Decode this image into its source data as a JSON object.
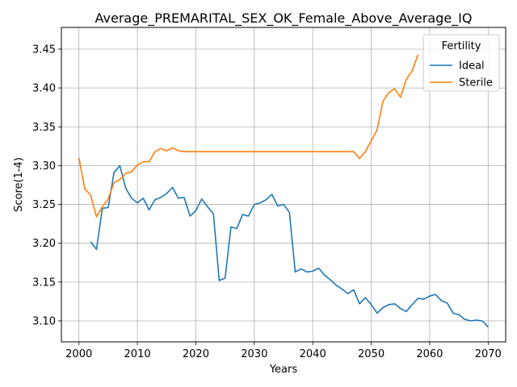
{
  "chart_data": {
    "type": "line",
    "title": "Average_PREMARITAL_SEX_OK_Female_Above_Average_IQ",
    "xlabel": "Years",
    "ylabel": "Score(1-4)",
    "xlim": [
      1997,
      2073
    ],
    "ylim": [
      3.073,
      3.478
    ],
    "xticks": [
      2000,
      2010,
      2020,
      2030,
      2040,
      2050,
      2060,
      2070
    ],
    "yticks": [
      3.1,
      3.15,
      3.2,
      3.25,
      3.3,
      3.35,
      3.4,
      3.45
    ],
    "ytick_labels": [
      "3.10",
      "3.15",
      "3.20",
      "3.25",
      "3.30",
      "3.35",
      "3.40",
      "3.45"
    ],
    "grid": true,
    "legend": {
      "title": "Fertility",
      "placement": "top-right"
    },
    "series": [
      {
        "name": "Ideal",
        "color": "#1f77b4",
        "x": [
          2002,
          2003,
          2004,
          2005,
          2006,
          2007,
          2008,
          2009,
          2010,
          2011,
          2012,
          2013,
          2014,
          2015,
          2016,
          2017,
          2018,
          2019,
          2020,
          2021,
          2022,
          2023,
          2024,
          2025,
          2026,
          2027,
          2028,
          2029,
          2030,
          2031,
          2032,
          2033,
          2034,
          2035,
          2036,
          2037,
          2038,
          2039,
          2040,
          2041,
          2042,
          2043,
          2044,
          2045,
          2046,
          2047,
          2048,
          2049,
          2050,
          2051,
          2052,
          2053,
          2054,
          2055,
          2056,
          2057,
          2058,
          2059,
          2060,
          2061,
          2062,
          2063,
          2064,
          2065,
          2066,
          2067,
          2068,
          2069,
          2070
        ],
        "y": [
          3.202,
          3.192,
          3.245,
          3.246,
          3.291,
          3.3,
          3.271,
          3.258,
          3.252,
          3.258,
          3.243,
          3.256,
          3.259,
          3.264,
          3.272,
          3.258,
          3.259,
          3.235,
          3.242,
          3.257,
          3.247,
          3.238,
          3.152,
          3.155,
          3.221,
          3.219,
          3.237,
          3.235,
          3.25,
          3.252,
          3.256,
          3.263,
          3.248,
          3.25,
          3.24,
          3.163,
          3.167,
          3.163,
          3.164,
          3.168,
          3.159,
          3.153,
          3.146,
          3.141,
          3.135,
          3.14,
          3.122,
          3.13,
          3.121,
          3.11,
          3.117,
          3.121,
          3.122,
          3.116,
          3.112,
          3.121,
          3.129,
          3.128,
          3.132,
          3.134,
          3.126,
          3.123,
          3.11,
          3.108,
          3.102,
          3.1,
          3.101,
          3.1,
          3.092
        ]
      },
      {
        "name": "Sterile",
        "color": "#ff7f0e",
        "x": [
          2000,
          2001,
          2002,
          2003,
          2004,
          2005,
          2006,
          2007,
          2008,
          2009,
          2010,
          2011,
          2012,
          2013,
          2014,
          2015,
          2016,
          2017,
          2018,
          2019,
          2020,
          2021,
          2022,
          2023,
          2024,
          2025,
          2026,
          2027,
          2028,
          2029,
          2030,
          2031,
          2032,
          2033,
          2034,
          2035,
          2036,
          2037,
          2038,
          2039,
          2040,
          2041,
          2042,
          2043,
          2044,
          2045,
          2046,
          2047,
          2048,
          2049,
          2050,
          2051,
          2052,
          2053,
          2054,
          2055,
          2056,
          2057,
          2058
        ],
        "y": [
          3.31,
          3.27,
          3.262,
          3.234,
          3.247,
          3.257,
          3.278,
          3.282,
          3.29,
          3.292,
          3.301,
          3.305,
          3.305,
          3.318,
          3.322,
          3.319,
          3.323,
          3.319,
          3.318,
          3.318,
          3.318,
          3.318,
          3.318,
          3.318,
          3.318,
          3.318,
          3.318,
          3.318,
          3.318,
          3.318,
          3.318,
          3.318,
          3.318,
          3.318,
          3.318,
          3.318,
          3.318,
          3.318,
          3.318,
          3.318,
          3.318,
          3.318,
          3.318,
          3.318,
          3.318,
          3.318,
          3.318,
          3.318,
          3.309,
          3.318,
          3.332,
          3.346,
          3.383,
          3.394,
          3.399,
          3.388,
          3.411,
          3.422,
          3.443
        ]
      }
    ]
  }
}
